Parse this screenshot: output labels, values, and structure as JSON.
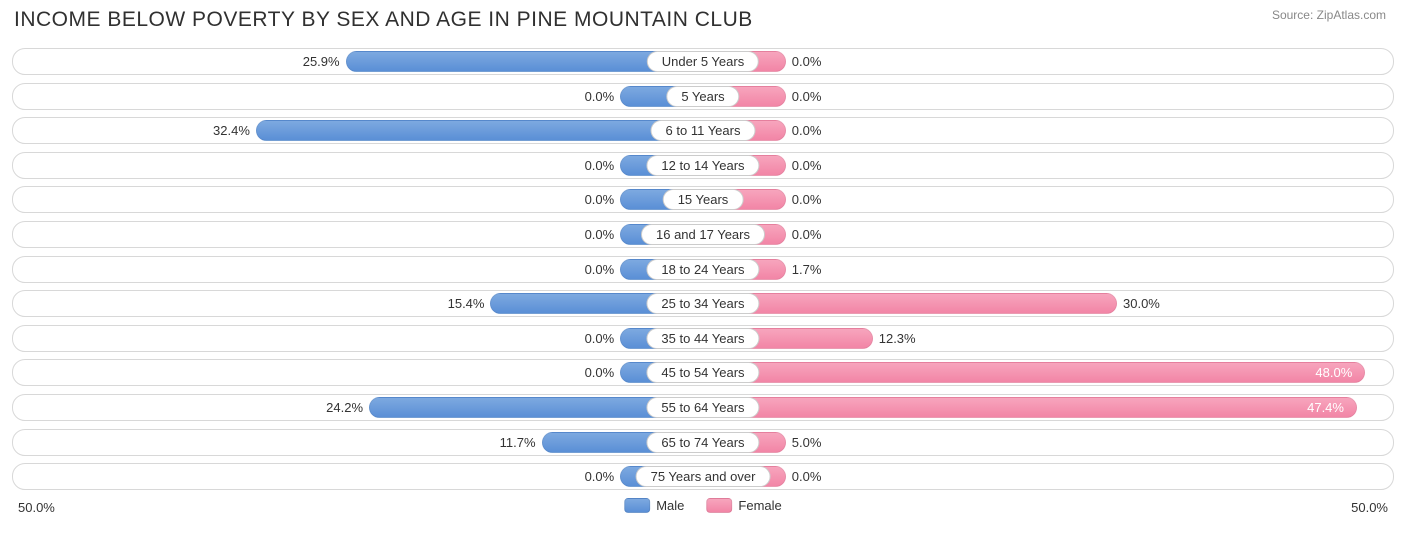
{
  "title": "INCOME BELOW POVERTY BY SEX AND AGE IN PINE MOUNTAIN CLUB",
  "source": "Source: ZipAtlas.com",
  "chart": {
    "type": "diverging-bar",
    "max_percent": 50.0,
    "min_bar_percent": 6.0,
    "axis_left_label": "50.0%",
    "axis_right_label": "50.0%",
    "male_color": "#6a98da",
    "female_color": "#f492af",
    "background_color": "#ffffff",
    "row_border_color": "#d8d8d8",
    "text_color": "#333333",
    "categories": [
      {
        "label": "Under 5 Years",
        "male": 25.9,
        "female": 0.0
      },
      {
        "label": "5 Years",
        "male": 0.0,
        "female": 0.0
      },
      {
        "label": "6 to 11 Years",
        "male": 32.4,
        "female": 0.0
      },
      {
        "label": "12 to 14 Years",
        "male": 0.0,
        "female": 0.0
      },
      {
        "label": "15 Years",
        "male": 0.0,
        "female": 0.0
      },
      {
        "label": "16 and 17 Years",
        "male": 0.0,
        "female": 0.0
      },
      {
        "label": "18 to 24 Years",
        "male": 0.0,
        "female": 1.7
      },
      {
        "label": "25 to 34 Years",
        "male": 15.4,
        "female": 30.0
      },
      {
        "label": "35 to 44 Years",
        "male": 0.0,
        "female": 12.3
      },
      {
        "label": "45 to 54 Years",
        "male": 0.0,
        "female": 48.0
      },
      {
        "label": "55 to 64 Years",
        "male": 24.2,
        "female": 47.4
      },
      {
        "label": "65 to 74 Years",
        "male": 11.7,
        "female": 5.0
      },
      {
        "label": "75 Years and over",
        "male": 0.0,
        "female": 0.0
      }
    ],
    "legend": {
      "male": "Male",
      "female": "Female"
    }
  }
}
